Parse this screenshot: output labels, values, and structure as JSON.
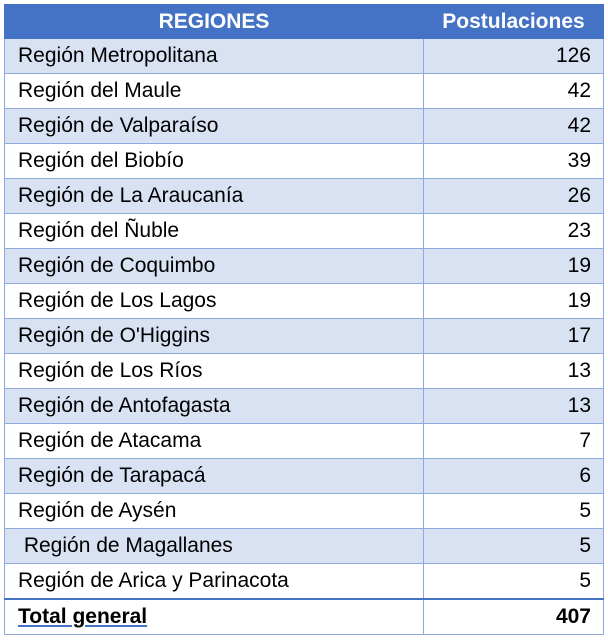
{
  "table": {
    "headers": {
      "region": "REGIONES",
      "count": "Postulaciones"
    },
    "rows": [
      {
        "region": "Región Metropolitana",
        "count": "126"
      },
      {
        "region": "Región del Maule",
        "count": "42"
      },
      {
        "region": "Región de Valparaíso",
        "count": "42"
      },
      {
        "region": "Región del Biobío",
        "count": "39"
      },
      {
        "region": "Región de La Araucanía",
        "count": "26"
      },
      {
        "region": "Región del Ñuble",
        "count": "23"
      },
      {
        "region": "Región de Coquimbo",
        "count": "19"
      },
      {
        "region": "Región de Los Lagos",
        "count": "19"
      },
      {
        "region": "Región de O'Higgins",
        "count": "17"
      },
      {
        "region": "Región de Los Ríos",
        "count": "13"
      },
      {
        "region": "Región de Antofagasta",
        "count": "13"
      },
      {
        "region": "Región de Atacama",
        "count": "7"
      },
      {
        "region": "Región de Tarapacá",
        "count": "6"
      },
      {
        "region": "Región de Aysén",
        "count": "5"
      },
      {
        "region": " Región de Magallanes",
        "count": "5"
      },
      {
        "region": "Región de Arica y Parinacota",
        "count": "5"
      }
    ],
    "total": {
      "label": "Total general",
      "count": "407"
    }
  },
  "colors": {
    "header_bg": "#4472c4",
    "band_bg": "#d9e2f3",
    "border": "#8eaadb"
  }
}
